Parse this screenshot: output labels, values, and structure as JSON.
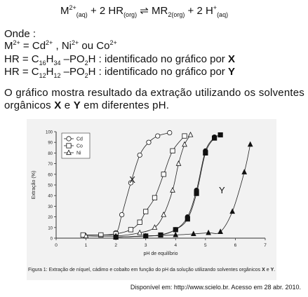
{
  "equation": {
    "m": "M",
    "m_sup": "2+",
    "m_sub": "(aq)",
    "plus1": "+ 2 HR",
    "hr_sub": "(org)",
    "arrow": "⇌",
    "product": "MR",
    "product_sub": "2(org)",
    "plus2": "+ 2 H",
    "h_sup": "+",
    "h_sub": "(aq)"
  },
  "onde": "Onde :",
  "metals_line": {
    "m": "M",
    "m_sup": "2+",
    "eq": " = Cd",
    "cd_sup": "2+",
    "ni": " , Ni",
    "ni_sup": "2+",
    "co": " ou Co",
    "co_sup": "2+"
  },
  "hr_lines": [
    {
      "pre": "HR = C",
      "s1": "16",
      "h": "H",
      "s2": "34",
      "mid": " –PO",
      "s3": "2",
      "end": "H : identificado no gráfico por ",
      "label": "X"
    },
    {
      "pre": "HR = C",
      "s1": "12",
      "h": "H",
      "s2": "12",
      "mid": " –PO",
      "s3": "2",
      "end": "H : identificado no gráfico por ",
      "label": "Y"
    }
  ],
  "paragraph": {
    "part1": "O gráfico mostra resultado da extração utilizando os solventes orgânicos ",
    "x": "X",
    "e": " e ",
    "y": "Y",
    "part2": " em diferentes pH."
  },
  "chart_data": {
    "type": "line",
    "xlabel": "pH de equilíbrio",
    "ylabel": "Extração (%)",
    "xlim": [
      0,
      7
    ],
    "ylim": [
      0,
      100
    ],
    "xticks": [
      "0",
      "1",
      "2",
      "3",
      "4",
      "5",
      "6",
      "7"
    ],
    "yticks": [
      "0",
      "10",
      "20",
      "30",
      "40",
      "50",
      "60",
      "70",
      "80",
      "90",
      "100"
    ],
    "legend": [
      "Cd",
      "Co",
      "Ni"
    ],
    "group_labels": [
      "X",
      "Y"
    ],
    "series": [
      {
        "name": "Cd",
        "group": "X",
        "marker": "circle",
        "x": [
          0.9,
          1.5,
          2.0,
          2.2,
          2.5,
          2.8,
          3.1,
          3.4,
          3.8
        ],
        "y": [
          3,
          3,
          5,
          22,
          52,
          78,
          90,
          96,
          99
        ]
      },
      {
        "name": "Co",
        "group": "X",
        "marker": "square",
        "x": [
          0.9,
          1.5,
          2.0,
          2.5,
          2.8,
          3.0,
          3.3,
          3.6,
          3.9,
          4.3
        ],
        "y": [
          3,
          3,
          4,
          8,
          15,
          25,
          38,
          60,
          82,
          96
        ]
      },
      {
        "name": "Ni",
        "group": "X",
        "marker": "triangle",
        "x": [
          1.0,
          2.0,
          2.8,
          3.3,
          3.6,
          3.9,
          4.1,
          4.3,
          4.5
        ],
        "y": [
          2,
          2,
          5,
          10,
          22,
          45,
          70,
          88,
          97
        ]
      },
      {
        "name": "Cd",
        "group": "Y",
        "marker": "circle-filled",
        "x": [
          2.0,
          3.0,
          3.5,
          4.0,
          4.4,
          4.7,
          5.0,
          5.3
        ],
        "y": [
          1,
          2,
          3,
          8,
          20,
          45,
          82,
          95
        ]
      },
      {
        "name": "Co",
        "group": "Y",
        "marker": "square-filled",
        "x": [
          2.0,
          3.0,
          3.5,
          4.0,
          4.4,
          4.7,
          5.0,
          5.3,
          5.5
        ],
        "y": [
          1,
          2,
          3,
          8,
          18,
          42,
          80,
          94,
          97
        ]
      },
      {
        "name": "Ni",
        "group": "Y",
        "marker": "triangle-filled",
        "x": [
          2.0,
          3.0,
          4.0,
          4.6,
          5.1,
          5.5,
          5.9,
          6.3,
          6.5
        ],
        "y": [
          1,
          2,
          3,
          4,
          5,
          6,
          25,
          62,
          88
        ]
      }
    ]
  },
  "caption": {
    "text": "Figura 1: Extração de níquel, cádimo e cobalto em função do pH da solução utilizando solventes orgânicos ",
    "x": "X",
    "e": " e ",
    "y": "Y",
    "end": "."
  },
  "source": "Disponível em: http://www.scielo.br. Acesso em 28 abr. 2010."
}
